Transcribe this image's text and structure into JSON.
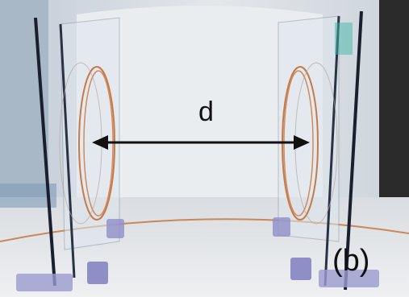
{
  "labels": {
    "distance": "d",
    "panel": "(b)"
  }
}
